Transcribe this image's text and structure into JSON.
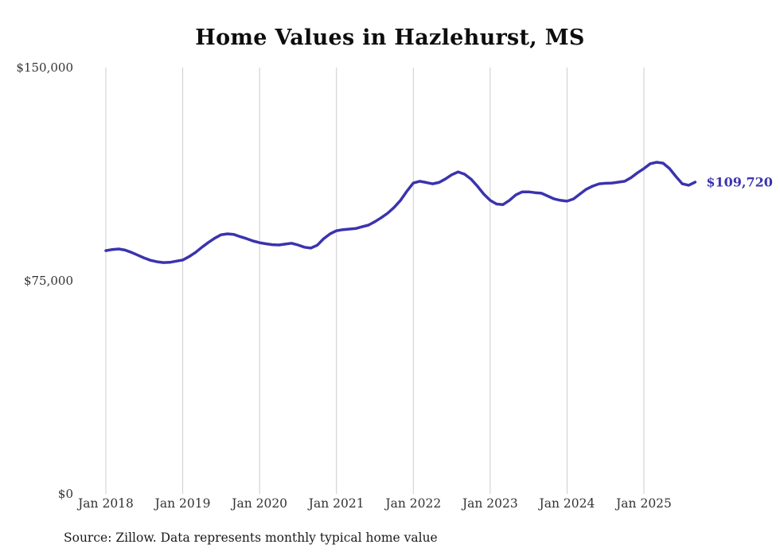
{
  "chart_data": {
    "type": "line",
    "title": "Home Values in Hazlehurst, MS",
    "series_name": "Typical home value",
    "frequency": "monthly",
    "x_start": "Jan 2018",
    "x_end": "Sep 2025",
    "values": [
      85600,
      86000,
      86200,
      85800,
      85000,
      84000,
      83000,
      82200,
      81700,
      81400,
      81500,
      81900,
      82300,
      83500,
      85000,
      86800,
      88500,
      90000,
      91200,
      91500,
      91300,
      90500,
      89800,
      89000,
      88400,
      88000,
      87700,
      87600,
      87900,
      88200,
      87600,
      86800,
      86500,
      87500,
      89800,
      91500,
      92600,
      93000,
      93200,
      93400,
      94000,
      94600,
      95800,
      97200,
      98800,
      100800,
      103300,
      106500,
      109400,
      110000,
      109600,
      109100,
      109600,
      110800,
      112300,
      113300,
      112500,
      110800,
      108300,
      105500,
      103300,
      102000,
      101800,
      103300,
      105200,
      106300,
      106300,
      106000,
      105800,
      104800,
      103800,
      103300,
      103000,
      103800,
      105500,
      107200,
      108300,
      109100,
      109300,
      109400,
      109700,
      110000,
      111300,
      113000,
      114500,
      116200,
      116700,
      116400,
      114500,
      111700,
      109100,
      108600,
      109720
    ],
    "x_tick_labels": [
      "Jan 2018",
      "Jan 2019",
      "Jan 2020",
      "Jan 2021",
      "Jan 2022",
      "Jan 2023",
      "Jan 2024",
      "Jan 2025"
    ],
    "y_ticks": [
      {
        "value": 150000,
        "label": "$150,000"
      },
      {
        "value": 75000,
        "label": "$75,000"
      },
      {
        "value": 0,
        "label": "$0"
      }
    ],
    "ylim": [
      0,
      150000
    ],
    "grid": "vertical-year-lines-only",
    "legend": "none",
    "line_color": "#3b33ad",
    "grid_color": "#cccccc",
    "latest_value": 109720,
    "end_label": "$109,720",
    "source": "Source: Zillow. Data represents monthly typical home value"
  }
}
